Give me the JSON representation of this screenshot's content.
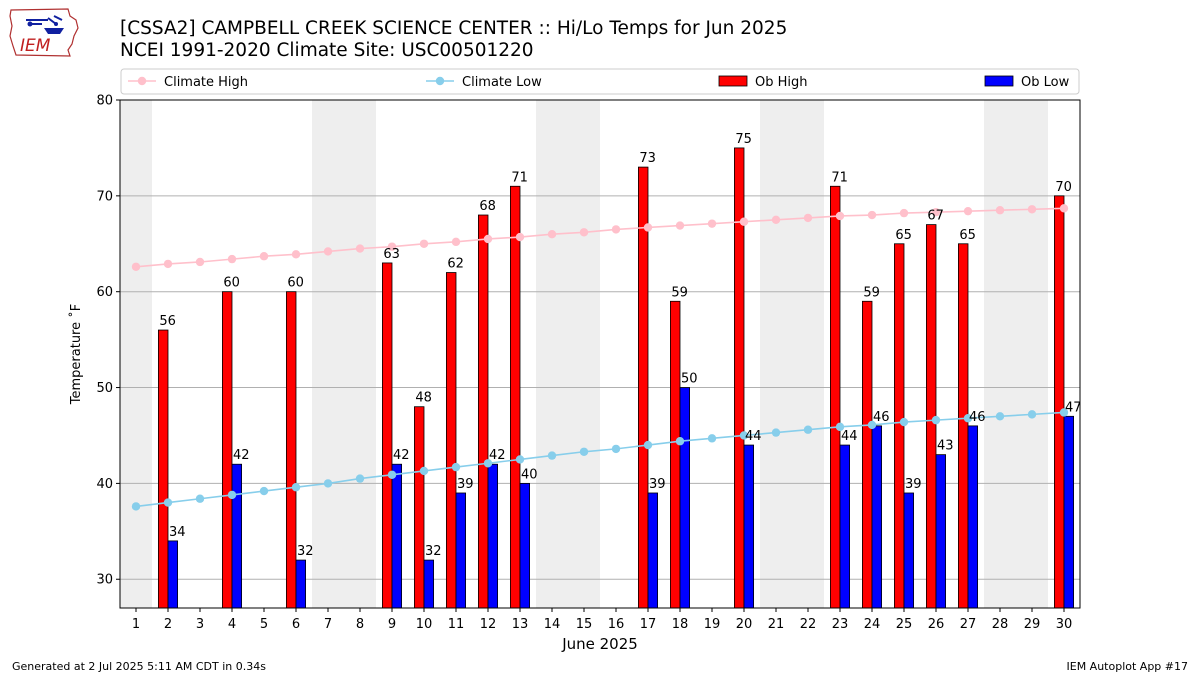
{
  "header": {
    "title_line1": "[CSSA2] CAMPBELL CREEK SCIENCE CENTER :: Hi/Lo Temps for Jun 2025",
    "title_line2": "NCEI 1991-2020 Climate Site: USC00501220"
  },
  "logo": {
    "text": "IEM",
    "icon": "iem-iowa-logo-icon"
  },
  "footer": {
    "left": "Generated at 2 Jul 2025 5:11 AM CDT in 0.34s",
    "right": "IEM Autoplot App #17"
  },
  "colors": {
    "ob_high": "#ff0000",
    "ob_low": "#0000ff",
    "climate_high": "#ffc0cb",
    "climate_low": "#87ceeb",
    "weekend_shade": "#eeeeee"
  },
  "chart_data": {
    "type": "bar",
    "xlabel": "June 2025",
    "ylabel": "Temperature ˚F",
    "ylim": [
      27,
      80
    ],
    "yticks": [
      30,
      40,
      50,
      60,
      70,
      80
    ],
    "grid": true,
    "legend_position": "top",
    "categories": [
      "1",
      "2",
      "3",
      "4",
      "5",
      "6",
      "7",
      "8",
      "9",
      "10",
      "11",
      "12",
      "13",
      "14",
      "15",
      "16",
      "17",
      "18",
      "19",
      "20",
      "21",
      "22",
      "23",
      "24",
      "25",
      "26",
      "27",
      "28",
      "29",
      "30"
    ],
    "shaded_days": [
      [
        1
      ],
      [
        7,
        8
      ],
      [
        14,
        15
      ],
      [
        21,
        22
      ],
      [
        28,
        29
      ]
    ],
    "series": [
      {
        "name": "Climate High",
        "kind": "line",
        "values": [
          62.6,
          62.9,
          63.1,
          63.4,
          63.7,
          63.9,
          64.2,
          64.5,
          64.7,
          65.0,
          65.2,
          65.5,
          65.7,
          66.0,
          66.2,
          66.5,
          66.7,
          66.9,
          67.1,
          67.3,
          67.5,
          67.7,
          67.9,
          68.0,
          68.2,
          68.3,
          68.4,
          68.5,
          68.6,
          68.7
        ]
      },
      {
        "name": "Climate Low",
        "kind": "line",
        "values": [
          37.6,
          38.0,
          38.4,
          38.8,
          39.2,
          39.6,
          40.0,
          40.5,
          40.9,
          41.3,
          41.7,
          42.1,
          42.5,
          42.9,
          43.3,
          43.6,
          44.0,
          44.4,
          44.7,
          45.0,
          45.3,
          45.6,
          45.9,
          46.1,
          46.4,
          46.6,
          46.8,
          47.0,
          47.2,
          47.4
        ]
      },
      {
        "name": "Ob High",
        "kind": "bar",
        "values": [
          null,
          56,
          null,
          60,
          null,
          60,
          null,
          null,
          63,
          48,
          62,
          68,
          71,
          null,
          null,
          null,
          73,
          59,
          null,
          75,
          null,
          null,
          71,
          59,
          65,
          67,
          65,
          null,
          null,
          70
        ]
      },
      {
        "name": "Ob Low",
        "kind": "bar",
        "values": [
          null,
          34,
          null,
          42,
          null,
          32,
          null,
          null,
          42,
          32,
          39,
          42,
          40,
          null,
          null,
          null,
          39,
          50,
          null,
          44,
          null,
          null,
          44,
          46,
          39,
          43,
          46,
          null,
          null,
          47
        ]
      }
    ]
  }
}
